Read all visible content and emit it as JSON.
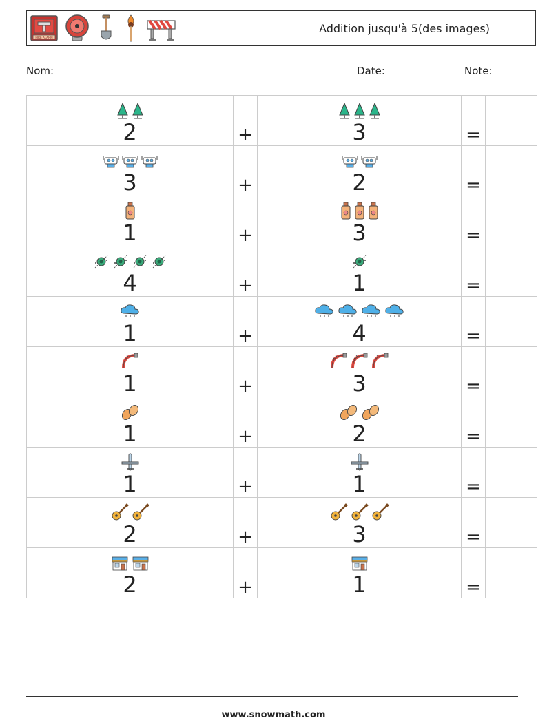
{
  "header": {
    "title": "Addition jusqu'à 5(des images)",
    "alarm_label": "FIRE ALARM",
    "icons": [
      "fire-alarm-icon",
      "alarm-bell-icon",
      "shovel-icon",
      "torch-icon",
      "barrier-icon"
    ]
  },
  "fields": {
    "name_label": "Nom:",
    "date_label": "Date:",
    "score_label": "Note:"
  },
  "operators": {
    "plus": "+",
    "equals": "="
  },
  "rows": [
    {
      "icon": "tree-icon",
      "a": 2,
      "b": 3,
      "a_text": "2",
      "b_text": "3"
    },
    {
      "icon": "robot-icon",
      "a": 3,
      "b": 2,
      "a_text": "3",
      "b_text": "2"
    },
    {
      "icon": "bottle-icon",
      "a": 1,
      "b": 3,
      "a_text": "1",
      "b_text": "3"
    },
    {
      "icon": "atom-icon",
      "a": 4,
      "b": 1,
      "a_text": "4",
      "b_text": "1"
    },
    {
      "icon": "cloud-rain-icon",
      "a": 1,
      "b": 4,
      "a_text": "1",
      "b_text": "4"
    },
    {
      "icon": "fire-hose-icon",
      "a": 1,
      "b": 3,
      "a_text": "1",
      "b_text": "3"
    },
    {
      "icon": "potato-icon",
      "a": 1,
      "b": 2,
      "a_text": "1",
      "b_text": "2"
    },
    {
      "icon": "airplane-icon",
      "a": 1,
      "b": 1,
      "a_text": "1",
      "b_text": "1"
    },
    {
      "icon": "guitar-icon",
      "a": 2,
      "b": 3,
      "a_text": "2",
      "b_text": "3"
    },
    {
      "icon": "storefront-icon",
      "a": 2,
      "b": 1,
      "a_text": "2",
      "b_text": "1"
    }
  ],
  "footer": {
    "website": "www.snowmath.com"
  }
}
